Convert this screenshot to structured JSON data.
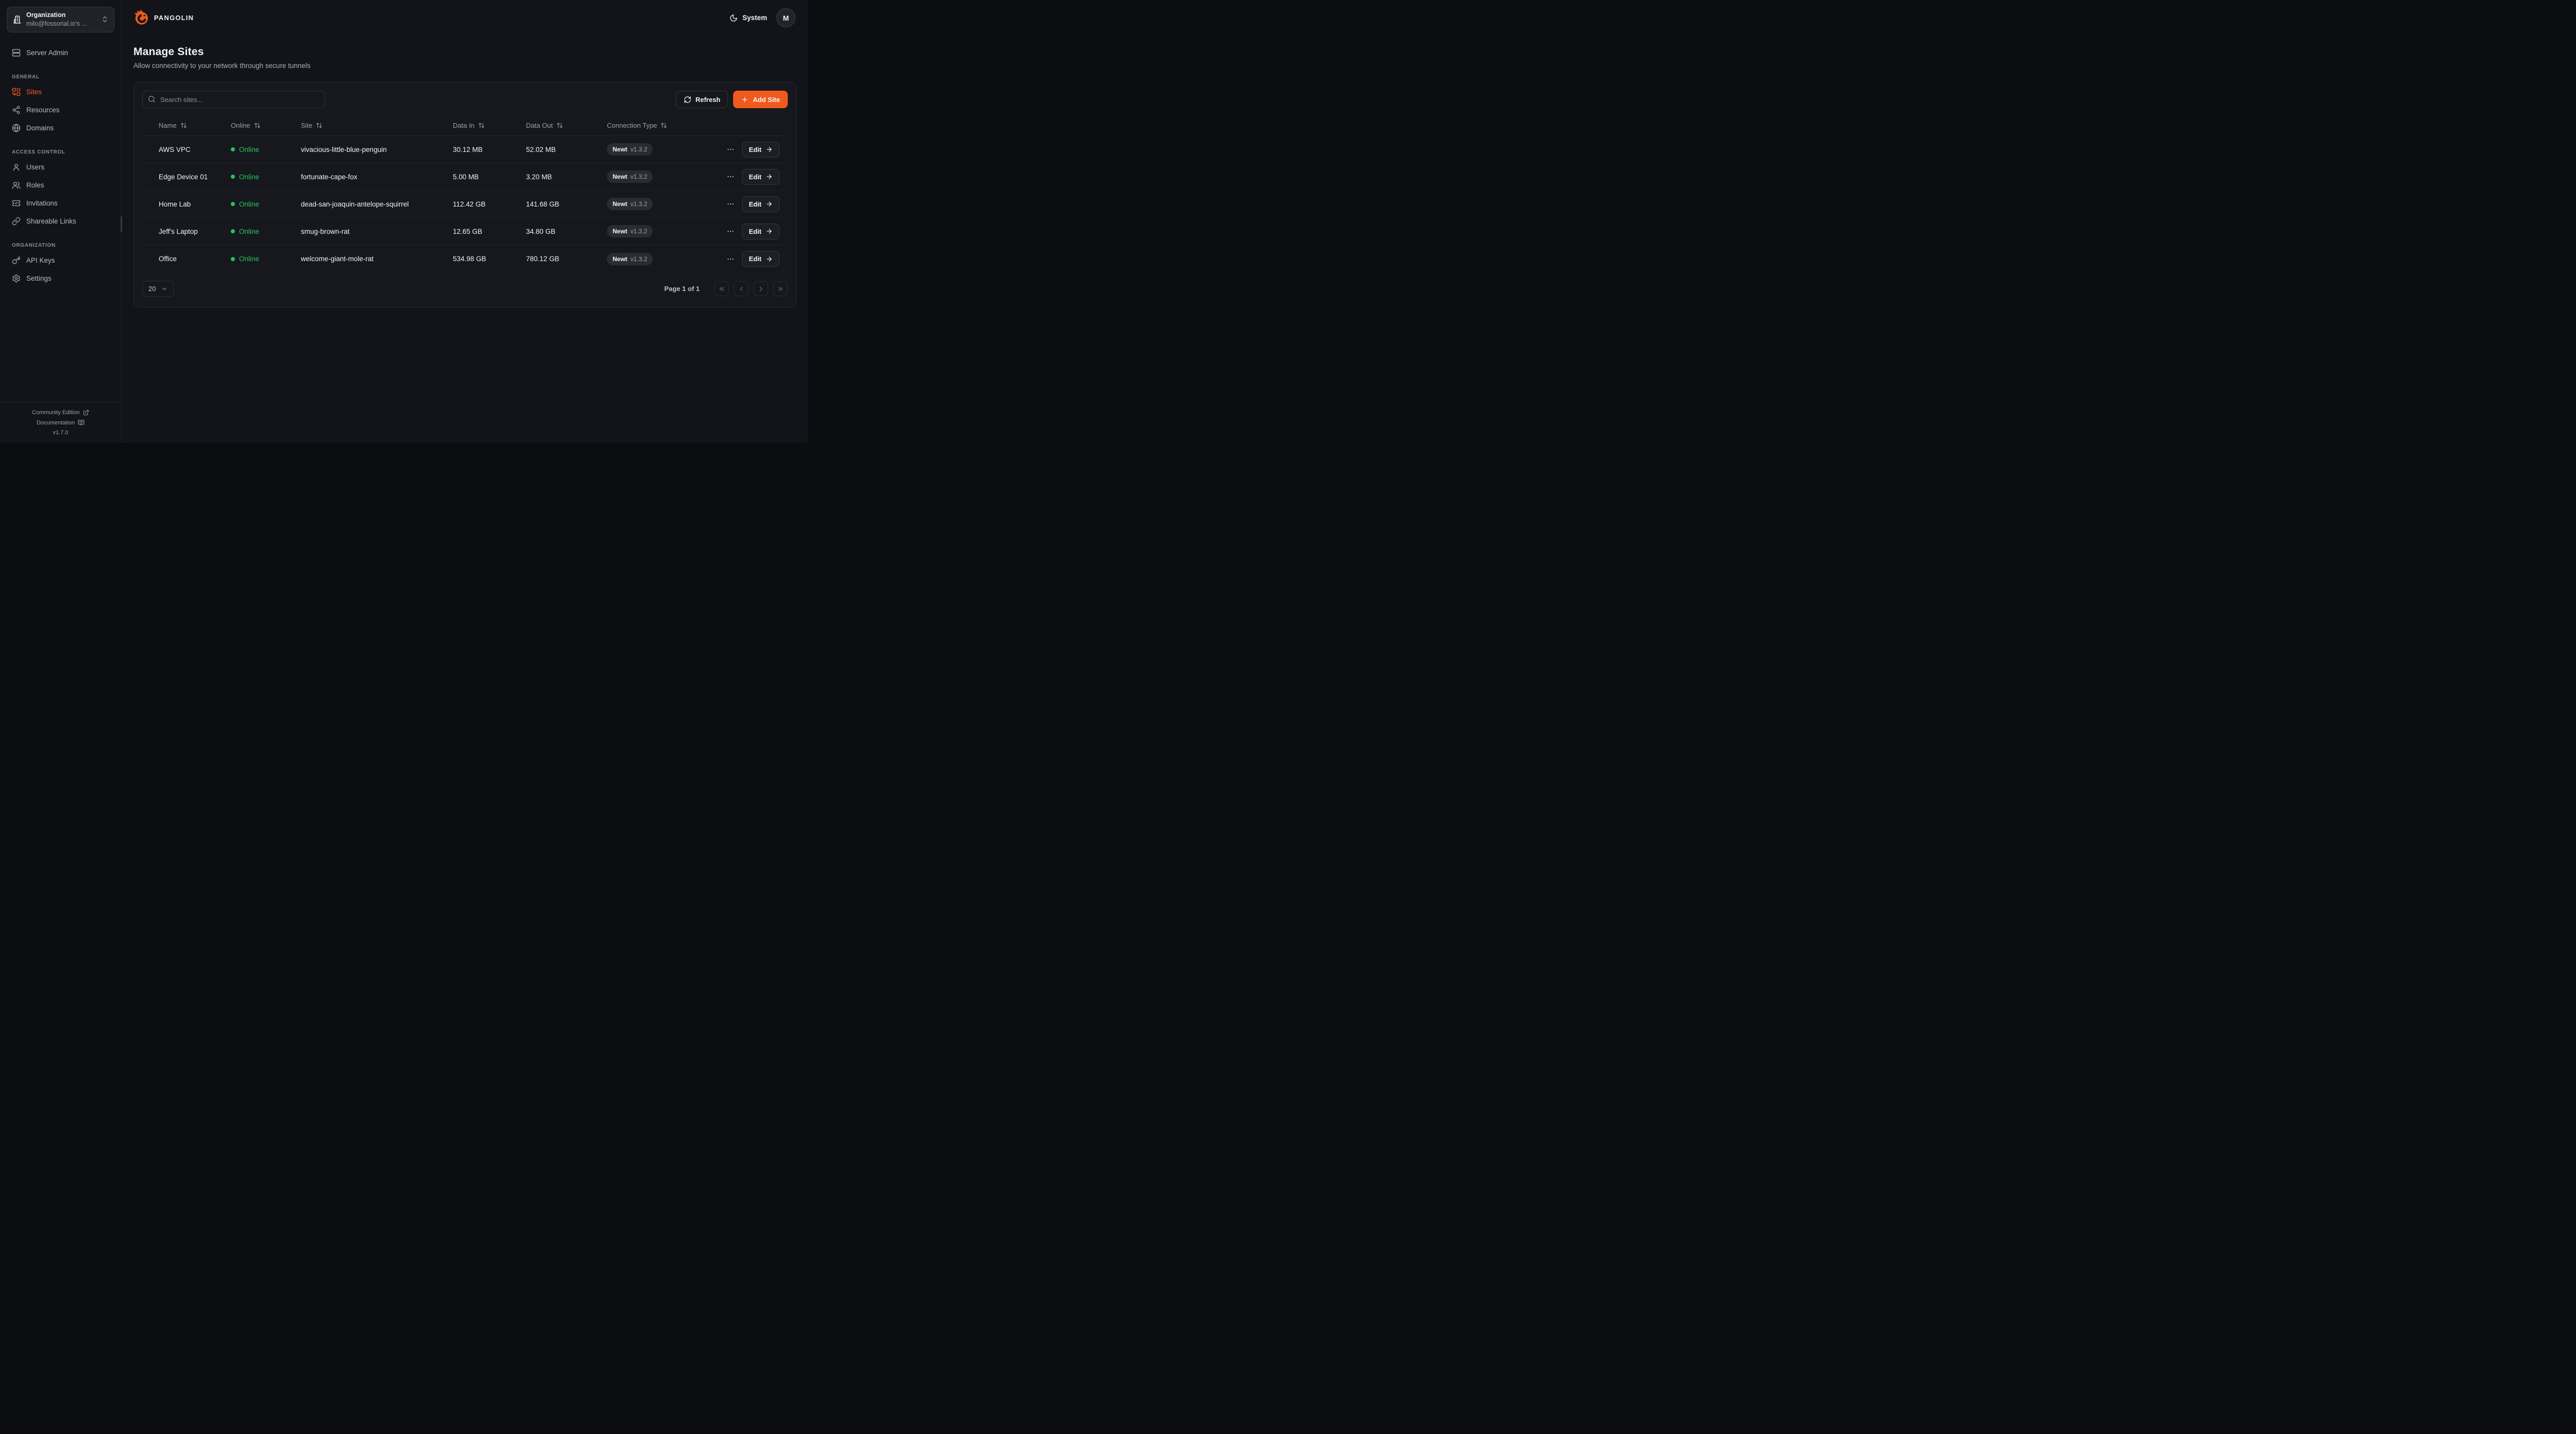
{
  "colors": {
    "accent": "#ee5a1e",
    "online": "#24c55b"
  },
  "org_switcher": {
    "label": "Organization",
    "value": "milo@fossorial.io's ..."
  },
  "sidebar": {
    "server_admin": "Server Admin",
    "sections": [
      {
        "label": "GENERAL",
        "items": [
          {
            "label": "Sites"
          },
          {
            "label": "Resources"
          },
          {
            "label": "Domains"
          }
        ]
      },
      {
        "label": "ACCESS CONTROL",
        "items": [
          {
            "label": "Users"
          },
          {
            "label": "Roles"
          },
          {
            "label": "Invitations"
          },
          {
            "label": "Shareable Links"
          }
        ]
      },
      {
        "label": "ORGANIZATION",
        "items": [
          {
            "label": "API Keys"
          },
          {
            "label": "Settings"
          }
        ]
      }
    ],
    "footer": {
      "community": "Community Edition",
      "docs": "Documentation",
      "version": "v1.7.0"
    }
  },
  "header": {
    "brand": "PANGOLIN",
    "theme_label": "System",
    "avatar_initial": "M"
  },
  "page": {
    "title": "Manage Sites",
    "subtitle": "Allow connectivity to your network through secure tunnels"
  },
  "toolbar": {
    "search_placeholder": "Search sites...",
    "refresh_label": "Refresh",
    "add_site_label": "Add Site"
  },
  "table": {
    "columns": [
      "Name",
      "Online",
      "Site",
      "Data In",
      "Data Out",
      "Connection Type"
    ],
    "edit_label": "Edit",
    "rows": [
      {
        "name": "AWS VPC",
        "status": "Online",
        "site": "vivacious-little-blue-penguin",
        "data_in": "30.12 MB",
        "data_out": "52.02 MB",
        "connection": {
          "type": "Newt",
          "version": "v1.3.2"
        }
      },
      {
        "name": "Edge Device 01",
        "status": "Online",
        "site": "fortunate-cape-fox",
        "data_in": "5.00 MB",
        "data_out": "3.20 MB",
        "connection": {
          "type": "Newt",
          "version": "v1.3.2"
        }
      },
      {
        "name": "Home Lab",
        "status": "Online",
        "site": "dead-san-joaquin-antelope-squirrel",
        "data_in": "112.42 GB",
        "data_out": "141.68 GB",
        "connection": {
          "type": "Newt",
          "version": "v1.3.2"
        }
      },
      {
        "name": "Jeff's Laptop",
        "status": "Online",
        "site": "smug-brown-rat",
        "data_in": "12.65 GB",
        "data_out": "34.80 GB",
        "connection": {
          "type": "Newt",
          "version": "v1.3.2"
        }
      },
      {
        "name": "Office",
        "status": "Online",
        "site": "welcome-giant-mole-rat",
        "data_in": "534.98 GB",
        "data_out": "780.12 GB",
        "connection": {
          "type": "Newt",
          "version": "v1.3.2"
        }
      }
    ]
  },
  "pagination": {
    "page_size": "20",
    "label": "Page 1 of 1"
  }
}
